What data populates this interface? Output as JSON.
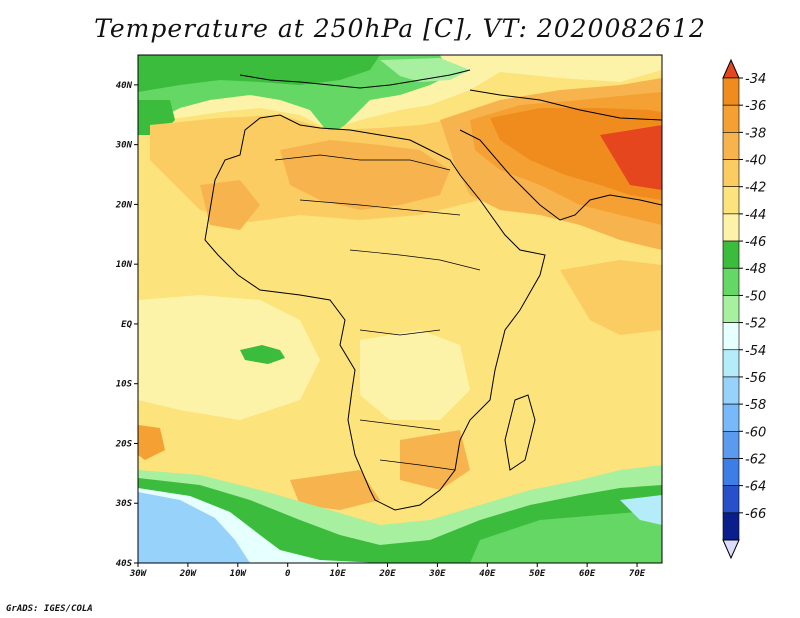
{
  "title": "Temperature at 250hPa [C], VT: 2020082612",
  "credit": "GrADS: IGES/COLA",
  "map": {
    "lon_range": [
      -30,
      75
    ],
    "lat_range": [
      -40,
      45
    ],
    "lon_ticks": [
      {
        "value": -30,
        "label": "30W"
      },
      {
        "value": -20,
        "label": "20W"
      },
      {
        "value": -10,
        "label": "10W"
      },
      {
        "value": 0,
        "label": "0"
      },
      {
        "value": 10,
        "label": "10E"
      },
      {
        "value": 20,
        "label": "20E"
      },
      {
        "value": 30,
        "label": "30E"
      },
      {
        "value": 40,
        "label": "40E"
      },
      {
        "value": 50,
        "label": "50E"
      },
      {
        "value": 60,
        "label": "60E"
      },
      {
        "value": 70,
        "label": "70E"
      }
    ],
    "lat_ticks": [
      {
        "value": 40,
        "label": "40N"
      },
      {
        "value": 30,
        "label": "30N"
      },
      {
        "value": 20,
        "label": "20N"
      },
      {
        "value": 10,
        "label": "10N"
      },
      {
        "value": 0,
        "label": "EQ"
      },
      {
        "value": -10,
        "label": "10S"
      },
      {
        "value": -20,
        "label": "20S"
      },
      {
        "value": -30,
        "label": "30S"
      },
      {
        "value": -40,
        "label": "40S"
      }
    ]
  },
  "colorbar": {
    "levels": [
      {
        "label": "-34",
        "color": "#f08c1e"
      },
      {
        "label": "-36",
        "color": "#f5a033"
      },
      {
        "label": "-38",
        "color": "#f7b44e"
      },
      {
        "label": "-40",
        "color": "#fbcc62"
      },
      {
        "label": "-42",
        "color": "#fde37c"
      },
      {
        "label": "-44",
        "color": "#fdf3a8"
      },
      {
        "label": "-46",
        "color": "#3cbc3c"
      },
      {
        "label": "-48",
        "color": "#64d764"
      },
      {
        "label": "-50",
        "color": "#a6f0a0"
      },
      {
        "label": "-52",
        "color": "#e6ffff"
      },
      {
        "label": "-54",
        "color": "#b4ecfa"
      },
      {
        "label": "-56",
        "color": "#96d2fa"
      },
      {
        "label": "-58",
        "color": "#78b9fa"
      },
      {
        "label": "-60",
        "color": "#5a9bf0"
      },
      {
        "label": "-62",
        "color": "#3c7de6"
      },
      {
        "label": "-64",
        "color": "#2850c8"
      },
      {
        "label": "-66",
        "color": "#0a1e8c"
      }
    ],
    "top_color": "#e6461e",
    "bottom_color": "#dcdcff"
  }
}
